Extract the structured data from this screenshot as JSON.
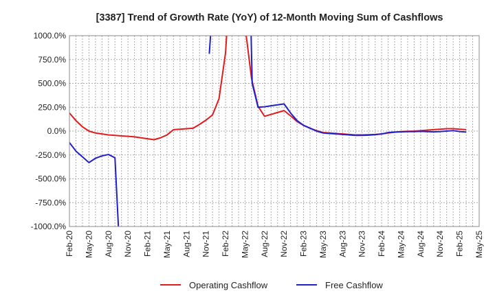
{
  "chart_data": {
    "type": "line",
    "title": "[3387]  Trend of Growth Rate (YoY) of 12-Month Moving Sum of Cashflows",
    "xlabel": "",
    "ylabel": "",
    "ylim": [
      -1000,
      1000
    ],
    "y_ticks": [
      "1000.0%",
      "750.0%",
      "500.0%",
      "250.0%",
      "0.0%",
      "-250.0%",
      "-500.0%",
      "-750.0%",
      "-1000.0%"
    ],
    "y_tick_values": [
      1000,
      750,
      500,
      250,
      0,
      -250,
      -500,
      -750,
      -1000
    ],
    "x_ticks": [
      "Feb-20",
      "May-20",
      "Aug-20",
      "Nov-20",
      "Feb-21",
      "May-21",
      "Aug-21",
      "Nov-21",
      "Feb-22",
      "May-22",
      "Aug-22",
      "Nov-22",
      "Feb-23",
      "May-23",
      "Aug-23",
      "Nov-23",
      "Feb-24",
      "May-24",
      "Aug-24",
      "Nov-24",
      "Feb-25",
      "May-25"
    ],
    "grid": true,
    "legend_position": "bottom-center",
    "colors": {
      "operating": "#e31a1c",
      "free": "#1f1fcc"
    },
    "series": [
      {
        "name": "Operating Cashflow",
        "color_key": "operating",
        "points": [
          [
            0,
            190
          ],
          [
            1,
            110
          ],
          [
            2,
            45
          ],
          [
            3,
            0
          ],
          [
            4,
            -20
          ],
          [
            5,
            -30
          ],
          [
            6,
            -40
          ],
          [
            7,
            -45
          ],
          [
            8,
            -50
          ],
          [
            9,
            -55
          ],
          [
            10,
            -60
          ],
          [
            11,
            -70
          ],
          [
            12,
            -80
          ],
          [
            13,
            -90
          ],
          [
            14,
            -70
          ],
          [
            15,
            -40
          ],
          [
            16,
            15
          ],
          [
            17,
            20
          ],
          [
            18,
            25
          ],
          [
            19,
            30
          ],
          [
            20,
            70
          ],
          [
            21,
            115
          ],
          [
            22,
            170
          ],
          [
            23,
            340
          ],
          [
            24,
            820
          ],
          [
            25,
            1900
          ],
          [
            26,
            2600
          ],
          [
            27,
            1100
          ],
          [
            28,
            550
          ],
          [
            29,
            260
          ],
          [
            30,
            155
          ],
          [
            31,
            175
          ],
          [
            32,
            195
          ],
          [
            33,
            215
          ],
          [
            34,
            160
          ],
          [
            35,
            100
          ],
          [
            36,
            60
          ],
          [
            37,
            30
          ],
          [
            38,
            5
          ],
          [
            39,
            -15
          ],
          [
            40,
            -20
          ],
          [
            41,
            -25
          ],
          [
            42,
            -30
          ],
          [
            43,
            -35
          ],
          [
            44,
            -40
          ],
          [
            45,
            -40
          ],
          [
            46,
            -38
          ],
          [
            47,
            -35
          ],
          [
            48,
            -30
          ],
          [
            49,
            -20
          ],
          [
            50,
            -12
          ],
          [
            51,
            -5
          ],
          [
            52,
            -2
          ],
          [
            53,
            0
          ],
          [
            54,
            5
          ],
          [
            55,
            10
          ],
          [
            56,
            15
          ],
          [
            57,
            20
          ],
          [
            58,
            25
          ],
          [
            59,
            25
          ],
          [
            60,
            20
          ],
          [
            61,
            15
          ]
        ]
      },
      {
        "name": "Free Cashflow",
        "color_key": "free",
        "segments": [
          [
            [
              0,
              -120
            ],
            [
              1,
              -210
            ],
            [
              2,
              -270
            ],
            [
              3,
              -330
            ],
            [
              4,
              -285
            ],
            [
              5,
              -260
            ],
            [
              6,
              -245
            ],
            [
              7,
              -280
            ],
            [
              7.6,
              -1100
            ]
          ],
          [
            [
              21.5,
              810
            ],
            [
              21.8,
              1100
            ]
          ],
          [
            [
              27.9,
              1100
            ],
            [
              28.1,
              500
            ],
            [
              29,
              250
            ],
            [
              30,
              255
            ],
            [
              31,
              265
            ],
            [
              32,
              275
            ],
            [
              33,
              285
            ],
            [
              34,
              190
            ],
            [
              35,
              110
            ],
            [
              36,
              60
            ],
            [
              37,
              30
            ],
            [
              38,
              0
            ],
            [
              39,
              -20
            ],
            [
              40,
              -25
            ],
            [
              41,
              -30
            ],
            [
              42,
              -35
            ],
            [
              43,
              -40
            ],
            [
              44,
              -45
            ],
            [
              45,
              -45
            ],
            [
              46,
              -42
            ],
            [
              47,
              -38
            ],
            [
              48,
              -30
            ],
            [
              49,
              -15
            ],
            [
              50,
              -10
            ],
            [
              51,
              -8
            ],
            [
              52,
              -5
            ],
            [
              53,
              -5
            ],
            [
              54,
              -3
            ],
            [
              55,
              -5
            ],
            [
              56,
              -8
            ],
            [
              57,
              -5
            ],
            [
              58,
              0
            ],
            [
              59,
              5
            ],
            [
              60,
              -5
            ],
            [
              61,
              -10
            ]
          ]
        ]
      }
    ]
  }
}
